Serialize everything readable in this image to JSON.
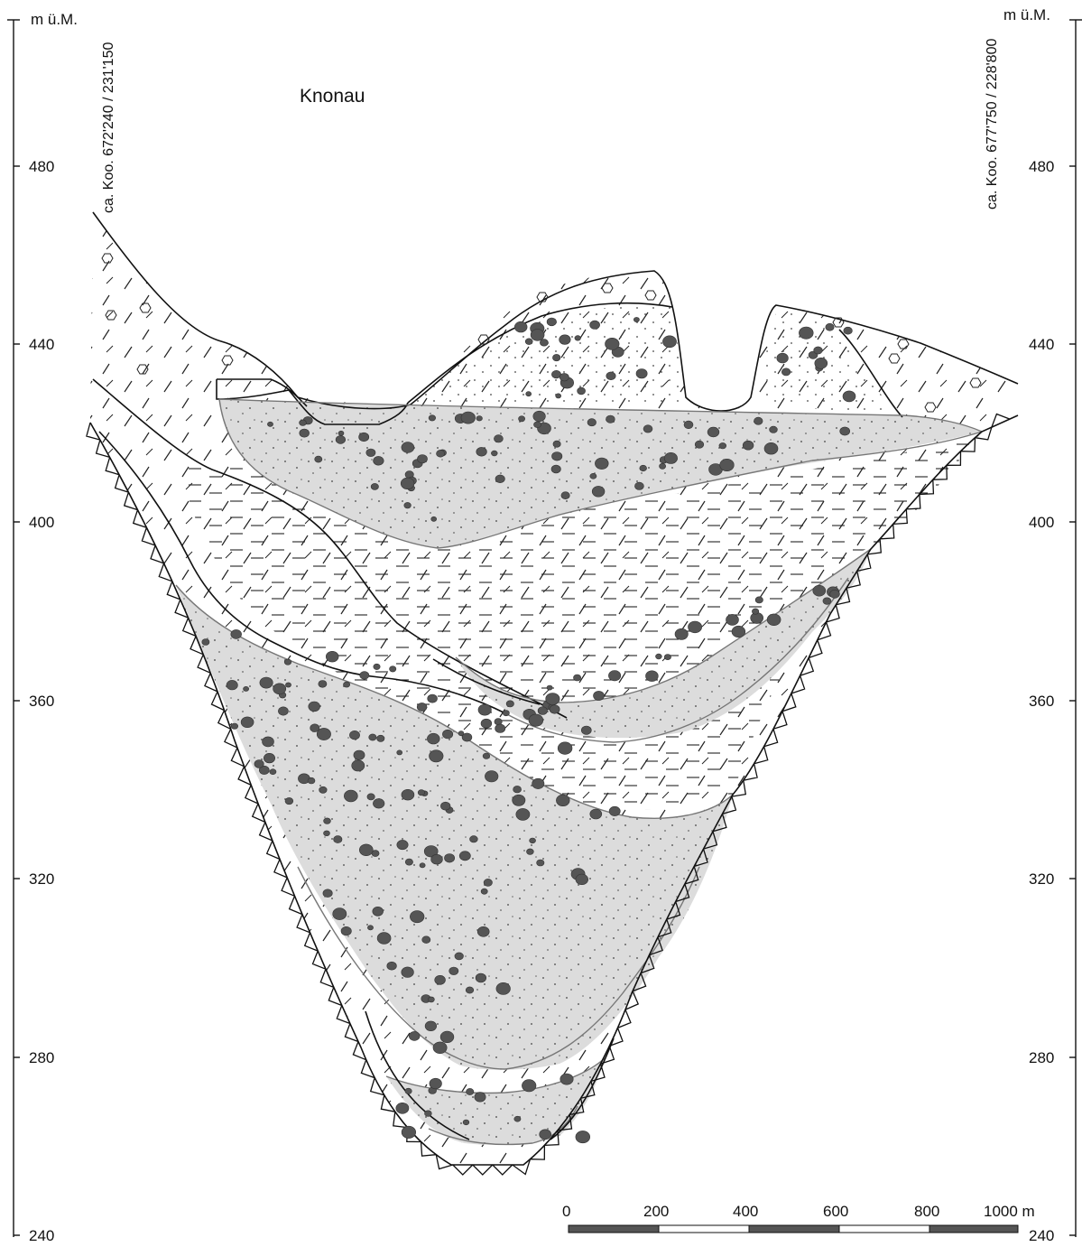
{
  "figure": {
    "title": "Knonau",
    "left_axis": {
      "unit": "m ü.M.",
      "coordinates": "ca. Koo. 672'240 / 231'150",
      "ticks": [
        "480",
        "440",
        "400",
        "360",
        "320",
        "280",
        "240"
      ]
    },
    "right_axis": {
      "unit": "m ü.M.",
      "coordinates": "ca. Koo. 677'750 / 228'800",
      "ticks": [
        "480",
        "440",
        "400",
        "360",
        "320",
        "280",
        "240"
      ]
    },
    "scale_bar": {
      "labels": [
        "0",
        "200",
        "400",
        "600",
        "800",
        "1000 m"
      ]
    }
  },
  "colors": {
    "line": "#111111",
    "gravel_fill": "#dcdcdc",
    "pebbles": "#555555"
  }
}
